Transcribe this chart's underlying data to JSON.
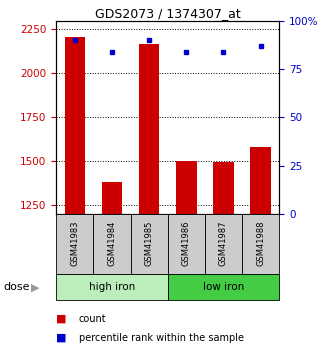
{
  "title": "GDS2073 / 1374307_at",
  "samples": [
    "GSM41983",
    "GSM41984",
    "GSM41985",
    "GSM41986",
    "GSM41987",
    "GSM41988"
  ],
  "count_values": [
    2205,
    1380,
    2165,
    1500,
    1495,
    1580
  ],
  "percentile_values": [
    90,
    84,
    90,
    84,
    84,
    87
  ],
  "ylim_left": [
    1200,
    2300
  ],
  "ylim_right": [
    0,
    100
  ],
  "yticks_left": [
    1250,
    1500,
    1750,
    2000,
    2250
  ],
  "yticks_right": [
    0,
    25,
    50,
    75,
    100
  ],
  "ytick_labels_right": [
    "0",
    "25",
    "50",
    "75",
    "100%"
  ],
  "groups": [
    {
      "label": "high iron",
      "indices": [
        0,
        1,
        2
      ],
      "color": "#bbeebb"
    },
    {
      "label": "low iron",
      "indices": [
        3,
        4,
        5
      ],
      "color": "#44cc44"
    }
  ],
  "bar_color": "#cc0000",
  "square_color": "#0000cc",
  "left_axis_color": "#cc0000",
  "right_axis_color": "#0000cc",
  "grid_color": "#000000",
  "bar_width": 0.55,
  "dose_label": "dose",
  "dose_arrow": "▶",
  "legend_count": "count",
  "legend_percentile": "percentile rank within the sample",
  "label_box_color": "#cccccc",
  "fig_width": 3.21,
  "fig_height": 3.45,
  "dpi": 100
}
